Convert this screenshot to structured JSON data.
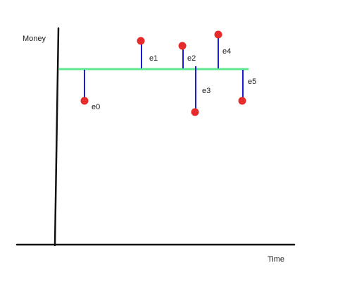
{
  "axes": {
    "y_label": "Money",
    "x_label": "Time"
  },
  "baseline_color": "#5ee88f",
  "stem_color": "#1a1adb",
  "dot_color": "#e52b2b",
  "axis_color": "#111111",
  "residuals": [
    {
      "label": "e0",
      "direction": "below"
    },
    {
      "label": "e1",
      "direction": "above"
    },
    {
      "label": "e2",
      "direction": "above"
    },
    {
      "label": "e3",
      "direction": "below"
    },
    {
      "label": "e4",
      "direction": "above"
    },
    {
      "label": "e5",
      "direction": "below"
    }
  ]
}
